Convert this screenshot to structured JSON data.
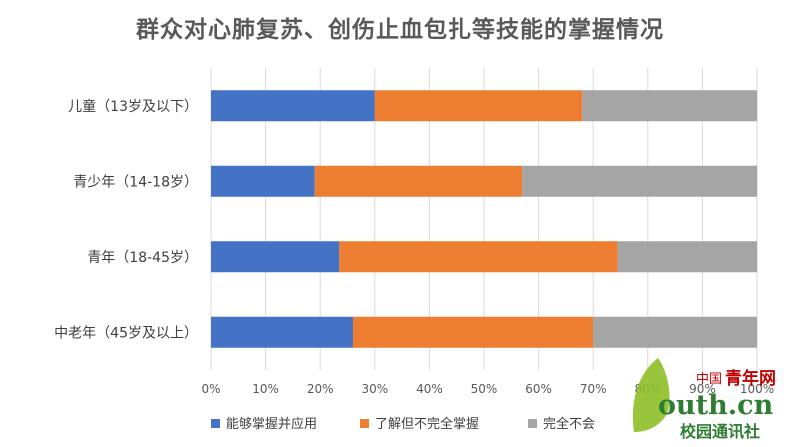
{
  "chart_data": {
    "type": "bar",
    "orientation": "horizontal",
    "stacked": "percent",
    "title": "群众对心肺复苏、创伤止血包扎等技能的掌握情况",
    "categories": [
      "儿童（13岁及以下）",
      "青少年（14-18岁）",
      "青年（18-45岁）",
      "中老年（45岁及以上）"
    ],
    "series": [
      {
        "name": "能够掌握并应用",
        "color": "#4472C4",
        "values": [
          30,
          19,
          23.5,
          26
        ]
      },
      {
        "name": "了解但不完全掌握",
        "color": "#ED7D31",
        "values": [
          38,
          38,
          51,
          44
        ]
      },
      {
        "name": "完全不会",
        "color": "#A5A5A5",
        "values": [
          32,
          43,
          25.5,
          30
        ]
      }
    ],
    "x_ticks": [
      "0%",
      "10%",
      "20%",
      "30%",
      "40%",
      "50%",
      "60%",
      "70%",
      "80%",
      "90%",
      "100%"
    ],
    "xlim": [
      0,
      100
    ],
    "grid": true,
    "legend_position": "bottom"
  },
  "watermark": {
    "line1_cn": "中国",
    "line1_rest": "青年网",
    "line2": "outh.cn",
    "line3": "校园通讯社",
    "leaf_color": "#8DBF26",
    "red": "#C00000",
    "green": "#2E7D32"
  }
}
